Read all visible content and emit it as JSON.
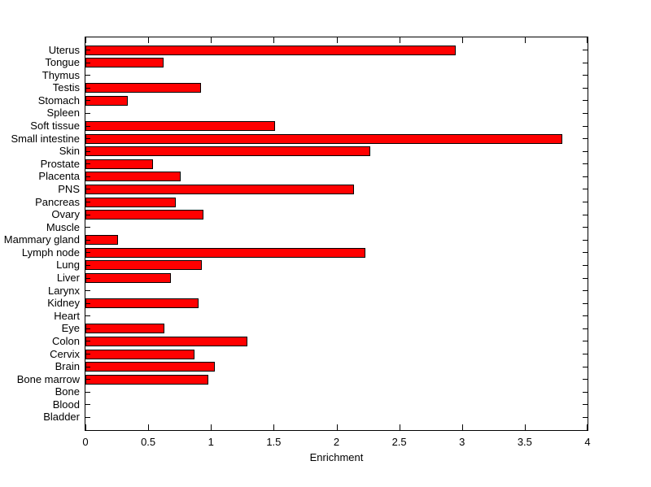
{
  "figure": {
    "background": "#ffffff",
    "text_color": "#000000"
  },
  "chart_data": {
    "type": "bar",
    "orientation": "horizontal",
    "title": "",
    "xlabel": "Enrichment",
    "ylabel": "",
    "categories": [
      "Uterus",
      "Tongue",
      "Thymus",
      "Testis",
      "Stomach",
      "Spleen",
      "Soft tissue",
      "Small intestine",
      "Skin",
      "Prostate",
      "Placenta",
      "PNS",
      "Pancreas",
      "Ovary",
      "Muscle",
      "Mammary gland",
      "Lymph node",
      "Lung",
      "Liver",
      "Larynx",
      "Kidney",
      "Heart",
      "Eye",
      "Colon",
      "Cervix",
      "Brain",
      "Bone marrow",
      "Bone",
      "Blood",
      "Bladder"
    ],
    "values": [
      2.95,
      0.62,
      0,
      0.92,
      0.34,
      0,
      1.51,
      3.8,
      2.27,
      0.54,
      0.76,
      2.14,
      0.72,
      0.94,
      0,
      0.26,
      2.23,
      0.93,
      0.68,
      0,
      0.9,
      0,
      0.63,
      1.29,
      0.87,
      1.03,
      0.98,
      0,
      0,
      0
    ],
    "xlim": [
      0,
      4
    ],
    "xticks": [
      0,
      0.5,
      1,
      1.5,
      2,
      2.5,
      3,
      3.5,
      4
    ],
    "xtick_labels": [
      "0",
      "0.5",
      "1",
      "1.5",
      "2",
      "2.5",
      "3",
      "3.5",
      "4"
    ],
    "grid": false,
    "legend": false,
    "bar_color": "#ff0000",
    "bar_edge_color": "#000000",
    "axis_color": "#000000",
    "tick_direction": "in"
  }
}
